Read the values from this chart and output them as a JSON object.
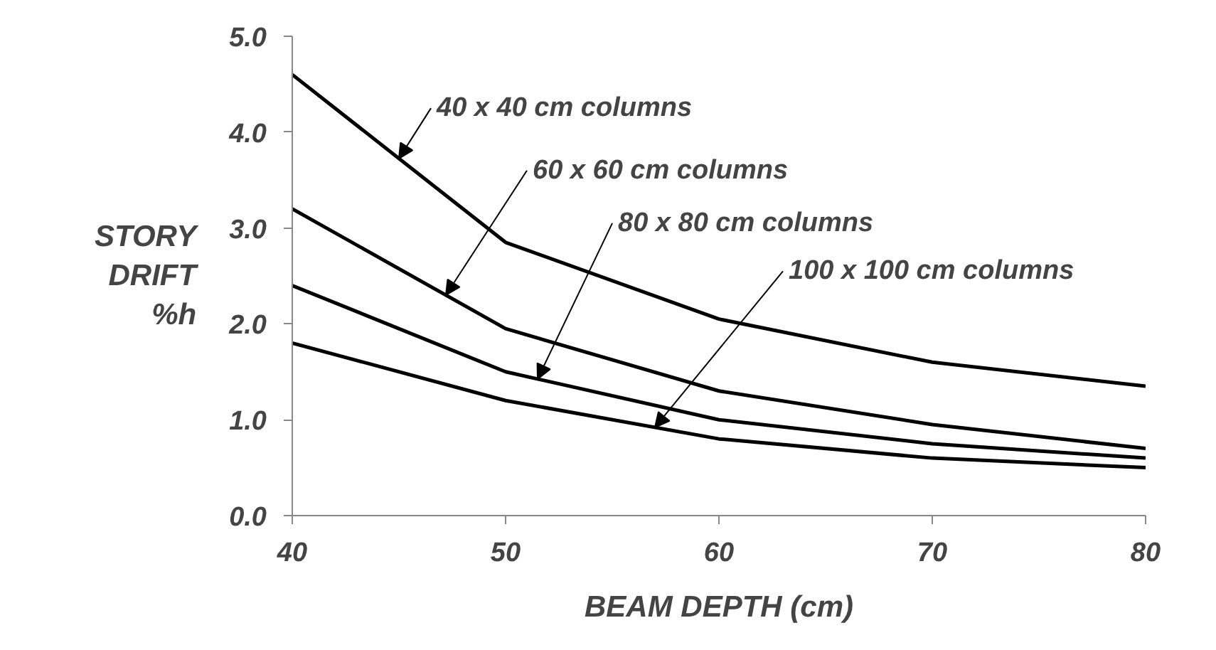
{
  "chart_data": {
    "type": "line",
    "xlabel": "BEAM DEPTH (cm)",
    "ylabel": "STORY\nDRIFT\n%h",
    "x": [
      40,
      50,
      60,
      70,
      80
    ],
    "series": [
      {
        "name": "40 x 40 cm columns",
        "color": "#000000",
        "values": [
          4.6,
          2.85,
          2.05,
          1.6,
          1.35
        ]
      },
      {
        "name": "60 x 60 cm columns",
        "color": "#000000",
        "values": [
          3.2,
          1.95,
          1.3,
          0.95,
          0.7
        ]
      },
      {
        "name": "80 x 80 cm columns",
        "color": "#000000",
        "values": [
          2.4,
          1.5,
          1.0,
          0.75,
          0.6
        ]
      },
      {
        "name": "100 x 100 cm columns",
        "color": "#000000",
        "values": [
          1.8,
          1.2,
          0.8,
          0.6,
          0.5
        ]
      }
    ],
    "xlim": [
      40,
      80
    ],
    "ylim": [
      0,
      5
    ],
    "xticks": [
      40,
      50,
      60,
      70,
      80
    ],
    "yticks": [
      {
        "value": 0,
        "label": "0.0"
      },
      {
        "value": 1,
        "label": "1.0"
      },
      {
        "value": 2,
        "label": "2.0"
      },
      {
        "value": 3,
        "label": "3.0"
      },
      {
        "value": 4,
        "label": "4.0"
      },
      {
        "value": 5,
        "label": "5.0"
      }
    ],
    "grid": false,
    "marker": "none",
    "line_style": "solid",
    "legend": false
  }
}
